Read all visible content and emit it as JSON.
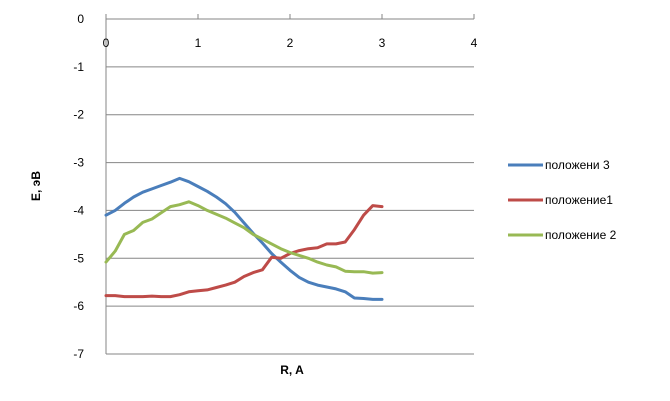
{
  "chart_data": {
    "type": "line",
    "title": "",
    "xlabel": "R, A",
    "ylabel": "E, эВ",
    "xlim": [
      0,
      4
    ],
    "ylim": [
      -7,
      0
    ],
    "x_ticks": [
      "0",
      "1",
      "2",
      "3",
      "4"
    ],
    "y_ticks": [
      "0",
      "-1",
      "-2",
      "-3",
      "-4",
      "-5",
      "-6",
      "-7"
    ],
    "grid": "horizontal",
    "legend_position": "right",
    "series": [
      {
        "name": "положени 3",
        "color": "#4a7ebb",
        "points": [
          [
            0,
            -4.1
          ],
          [
            0.1,
            -4.0
          ],
          [
            0.2,
            -3.85
          ],
          [
            0.3,
            -3.72
          ],
          [
            0.4,
            -3.62
          ],
          [
            0.5,
            -3.55
          ],
          [
            0.6,
            -3.48
          ],
          [
            0.7,
            -3.41
          ],
          [
            0.8,
            -3.33
          ],
          [
            0.9,
            -3.4
          ],
          [
            1.0,
            -3.5
          ],
          [
            1.1,
            -3.6
          ],
          [
            1.2,
            -3.72
          ],
          [
            1.3,
            -3.86
          ],
          [
            1.4,
            -4.04
          ],
          [
            1.5,
            -4.26
          ],
          [
            1.6,
            -4.48
          ],
          [
            1.7,
            -4.68
          ],
          [
            1.8,
            -4.9
          ],
          [
            1.9,
            -5.08
          ],
          [
            2.0,
            -5.25
          ],
          [
            2.1,
            -5.4
          ],
          [
            2.2,
            -5.5
          ],
          [
            2.3,
            -5.56
          ],
          [
            2.4,
            -5.6
          ],
          [
            2.5,
            -5.64
          ],
          [
            2.6,
            -5.7
          ],
          [
            2.7,
            -5.83
          ],
          [
            2.8,
            -5.84
          ],
          [
            2.9,
            -5.86
          ],
          [
            3.0,
            -5.86
          ]
        ]
      },
      {
        "name": "положение1",
        "color": "#be4b48",
        "points": [
          [
            0,
            -5.78
          ],
          [
            0.1,
            -5.78
          ],
          [
            0.2,
            -5.8
          ],
          [
            0.3,
            -5.8
          ],
          [
            0.4,
            -5.8
          ],
          [
            0.5,
            -5.79
          ],
          [
            0.6,
            -5.8
          ],
          [
            0.7,
            -5.8
          ],
          [
            0.8,
            -5.76
          ],
          [
            0.9,
            -5.7
          ],
          [
            1.0,
            -5.68
          ],
          [
            1.1,
            -5.66
          ],
          [
            1.2,
            -5.61
          ],
          [
            1.3,
            -5.56
          ],
          [
            1.4,
            -5.5
          ],
          [
            1.5,
            -5.38
          ],
          [
            1.6,
            -5.3
          ],
          [
            1.7,
            -5.24
          ],
          [
            1.8,
            -4.98
          ],
          [
            1.9,
            -5.0
          ],
          [
            2.0,
            -4.9
          ],
          [
            2.1,
            -4.84
          ],
          [
            2.2,
            -4.8
          ],
          [
            2.3,
            -4.78
          ],
          [
            2.4,
            -4.7
          ],
          [
            2.5,
            -4.7
          ],
          [
            2.6,
            -4.66
          ],
          [
            2.7,
            -4.4
          ],
          [
            2.8,
            -4.1
          ],
          [
            2.9,
            -3.9
          ],
          [
            3.0,
            -3.92
          ]
        ]
      },
      {
        "name": "положение 2",
        "color": "#98b954",
        "points": [
          [
            0,
            -5.08
          ],
          [
            0.1,
            -4.85
          ],
          [
            0.2,
            -4.5
          ],
          [
            0.3,
            -4.42
          ],
          [
            0.4,
            -4.25
          ],
          [
            0.5,
            -4.18
          ],
          [
            0.6,
            -4.05
          ],
          [
            0.7,
            -3.92
          ],
          [
            0.8,
            -3.88
          ],
          [
            0.9,
            -3.82
          ],
          [
            1.0,
            -3.9
          ],
          [
            1.1,
            -4.0
          ],
          [
            1.2,
            -4.08
          ],
          [
            1.3,
            -4.16
          ],
          [
            1.4,
            -4.26
          ],
          [
            1.5,
            -4.36
          ],
          [
            1.6,
            -4.5
          ],
          [
            1.7,
            -4.6
          ],
          [
            1.8,
            -4.7
          ],
          [
            1.9,
            -4.8
          ],
          [
            2.0,
            -4.88
          ],
          [
            2.1,
            -4.94
          ],
          [
            2.2,
            -5.0
          ],
          [
            2.3,
            -5.08
          ],
          [
            2.4,
            -5.14
          ],
          [
            2.5,
            -5.18
          ],
          [
            2.6,
            -5.27
          ],
          [
            2.7,
            -5.28
          ],
          [
            2.8,
            -5.28
          ],
          [
            2.9,
            -5.31
          ],
          [
            3.0,
            -5.3
          ]
        ]
      }
    ]
  }
}
